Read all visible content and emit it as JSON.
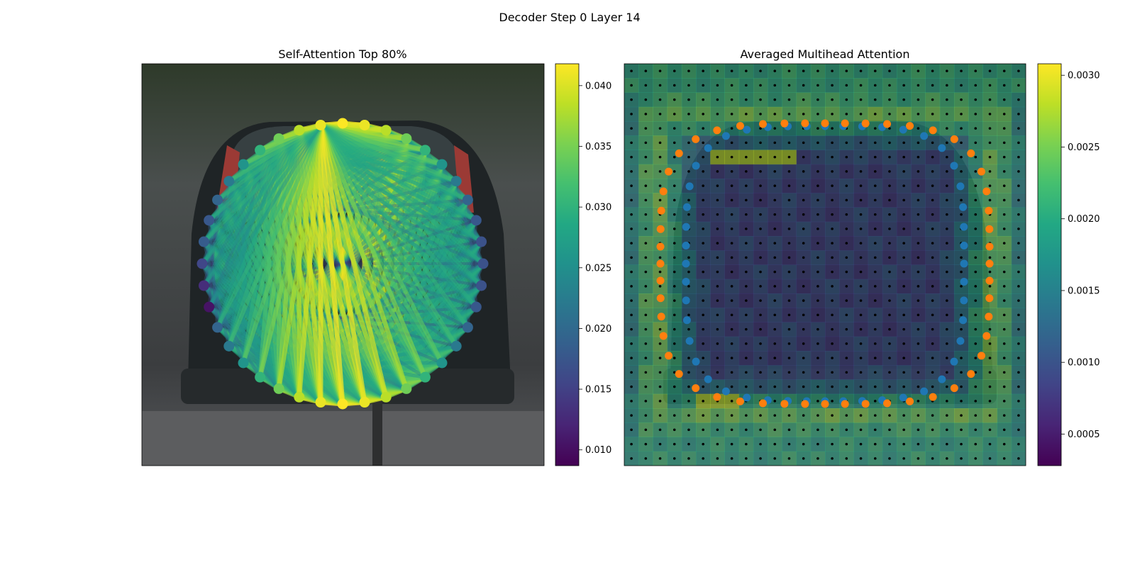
{
  "figure": {
    "suptitle": "Decoder Step 0 Layer 14"
  },
  "colors": {
    "viridis": [
      "#440154",
      "#482475",
      "#414487",
      "#355f8d",
      "#2a788e",
      "#21918c",
      "#22a884",
      "#44bf70",
      "#7ad151",
      "#bddf26",
      "#fde725"
    ],
    "blue_points": "#1f77b4",
    "orange_points": "#ff7f0e",
    "grid_dots": "#000000"
  },
  "chart_data": [
    {
      "type": "scatter",
      "title": "Self-Attention Top 80%",
      "background": "car rear photo (camera image)",
      "points": 40,
      "edges": "top-80% attention links drawn as lines between points, colored by attention weight",
      "colorbar": {
        "range": [
          0.0087,
          0.0418
        ],
        "ticks": [
          "0.010",
          "0.015",
          "0.020",
          "0.025",
          "0.030",
          "0.035",
          "0.040"
        ],
        "cmap": "viridis"
      },
      "grid": false
    },
    {
      "type": "heatmap",
      "title": "Averaged Multihead Attention",
      "background": "car rear photo overlaid with attention heatmap",
      "overlay": "grid of black dots, blue (inner) and orange (outer) contour points",
      "colorbar": {
        "range": [
          0.00028,
          0.00308
        ],
        "ticks": [
          "0.0005",
          "0.0010",
          "0.0015",
          "0.0020",
          "0.0025",
          "0.0030"
        ],
        "cmap": "viridis"
      },
      "grid": false
    }
  ]
}
